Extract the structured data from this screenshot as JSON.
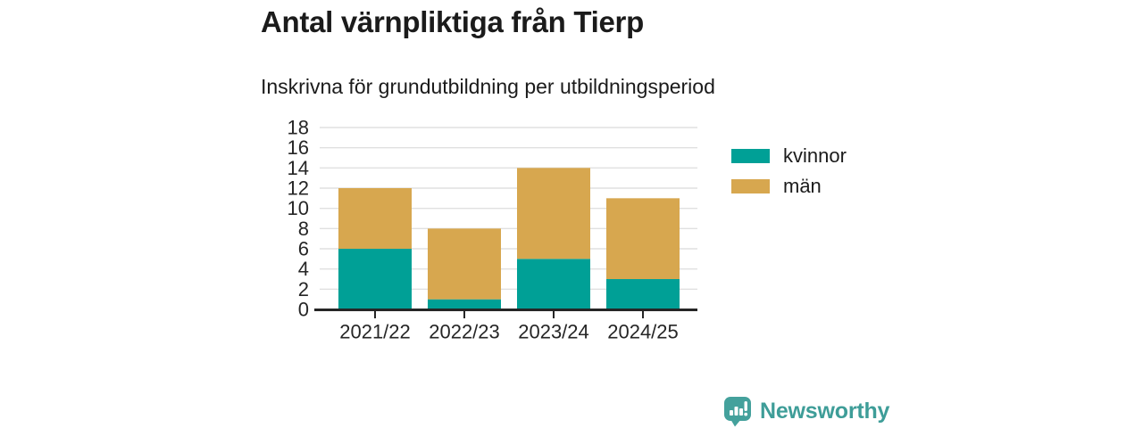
{
  "header": {
    "title": "Antal värnpliktiga från Tierp",
    "subtitle": "Inskrivna för grundutbildning per utbildningsperiod"
  },
  "chart_data": {
    "type": "bar",
    "stacked": true,
    "title": "Antal värnpliktiga från Tierp",
    "subtitle": "Inskrivna för grundutbildning per utbildningsperiod",
    "categories": [
      "2021/22",
      "2022/23",
      "2023/24",
      "2024/25"
    ],
    "series": [
      {
        "name": "kvinnor",
        "color": "#00A096",
        "values": [
          6,
          1,
          5,
          3
        ]
      },
      {
        "name": "män",
        "color": "#D7A74F",
        "values": [
          6,
          7,
          9,
          8
        ]
      }
    ],
    "stack_totals": [
      12,
      8,
      14,
      11
    ],
    "xlabel": "",
    "ylabel": "",
    "ylim": [
      0,
      18
    ],
    "yticks": [
      0,
      2,
      4,
      6,
      8,
      10,
      12,
      14,
      16,
      18
    ],
    "grid": true,
    "legend_position": "right"
  },
  "footer": {
    "brand": "Newsworthy",
    "brand_color": "#3E9D98",
    "icon_color": "#44A19C",
    "icon_name": "newsworthy-speech-bubble-chart-icon"
  },
  "colors": {
    "background": "#FFFFFF",
    "grid": "#E0E0E0",
    "axis": "#262626",
    "tick_text": "#262626",
    "heading_text": "#1B1B1B"
  }
}
